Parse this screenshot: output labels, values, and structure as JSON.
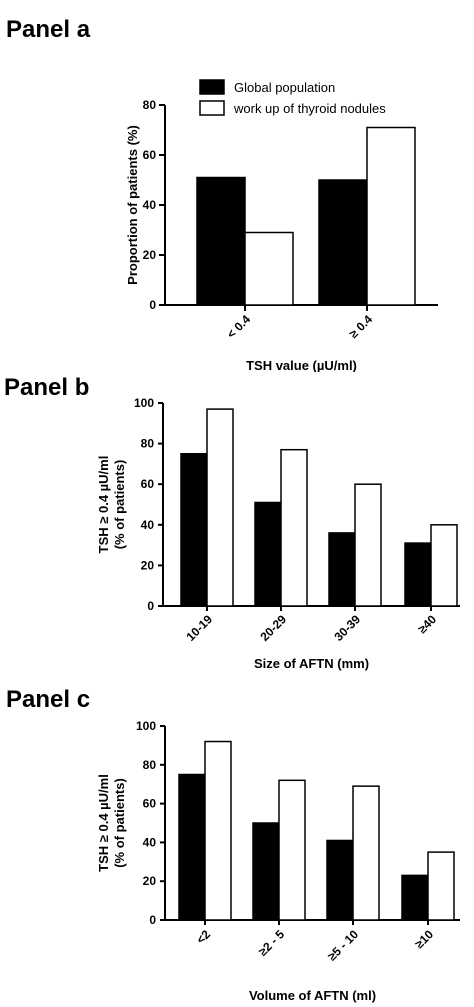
{
  "panels": [
    {
      "title": "Panel a"
    },
    {
      "title": "Panel b"
    },
    {
      "title": "Panel c"
    }
  ],
  "legend": [
    {
      "label": "Global population",
      "color": "#000000"
    },
    {
      "label": "work up of thyroid nodules",
      "color": "#ffffff"
    }
  ],
  "chart_data": [
    {
      "type": "bar",
      "title": "",
      "categories": [
        "< 0.4",
        "≥ 0.4"
      ],
      "series": [
        {
          "name": "Global population",
          "values": [
            51,
            50
          ]
        },
        {
          "name": "work up of thyroid nodules",
          "values": [
            29,
            71
          ]
        }
      ],
      "xlabel": "TSH value (µU/ml)",
      "ylabel": "Proportion of patients (%)",
      "ylim": [
        0,
        80
      ],
      "yticks": [
        0,
        20,
        40,
        60,
        80
      ]
    },
    {
      "type": "bar",
      "title": "",
      "categories": [
        "10-19",
        "20-29",
        "30-39",
        "≥40"
      ],
      "series": [
        {
          "name": "Global population",
          "values": [
            75,
            51,
            36,
            31
          ]
        },
        {
          "name": "work up of thyroid nodules",
          "values": [
            97,
            77,
            60,
            40
          ]
        }
      ],
      "xlabel": "Size of AFTN (mm)",
      "ylabel": [
        "TSH ≥ 0.4 µU/ml",
        "(% of patients)"
      ],
      "ylim": [
        0,
        100
      ],
      "yticks": [
        0,
        20,
        40,
        60,
        80,
        100
      ]
    },
    {
      "type": "bar",
      "title": "",
      "categories": [
        "<2",
        "≥2 - 5",
        "≥5 - 10",
        "≥10"
      ],
      "series": [
        {
          "name": "Global population",
          "values": [
            75,
            50,
            41,
            23
          ]
        },
        {
          "name": "work up of thyroid nodules",
          "values": [
            92,
            72,
            69,
            35
          ]
        }
      ],
      "xlabel": "Volume  of AFTN (ml)",
      "ylabel": [
        "TSH ≥ 0.4 µU/ml",
        "(% of patients)"
      ],
      "ylim": [
        0,
        100
      ],
      "yticks": [
        0,
        20,
        40,
        60,
        80,
        100
      ]
    }
  ]
}
